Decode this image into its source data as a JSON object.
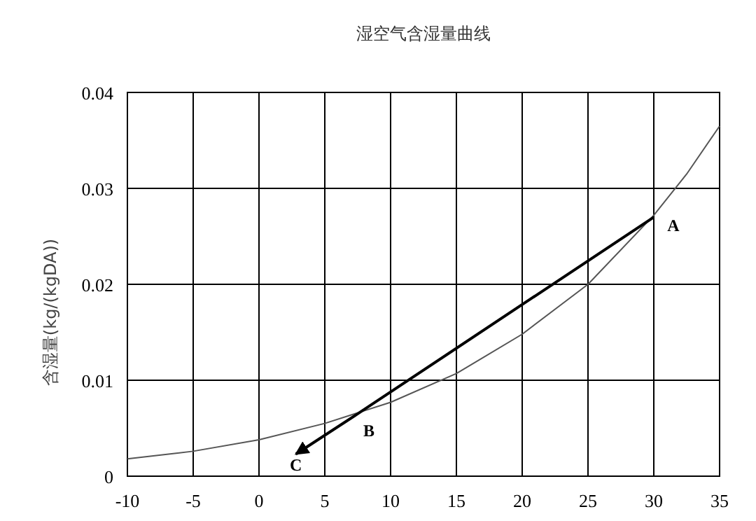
{
  "chart_data": {
    "type": "line",
    "title": "湿空气含湿量曲线",
    "ylabel": "含湿量(kg/(kgDA))",
    "xlim": [
      -10,
      35
    ],
    "xticks": [
      -10,
      -5,
      0,
      5,
      10,
      15,
      20,
      25,
      30,
      35
    ],
    "ylim": [
      0,
      0.04
    ],
    "yticks": [
      0,
      0.01,
      0.02,
      0.03,
      0.04
    ],
    "grid": true,
    "marker": "none",
    "series": [
      {
        "color": "#555555",
        "x": [
          -10,
          -5,
          0,
          5,
          10,
          15,
          20,
          25,
          30,
          32.5,
          35
        ],
        "values": [
          0.0018,
          0.0026,
          0.0038,
          0.0055,
          0.0077,
          0.0107,
          0.0148,
          0.02,
          0.0272,
          0.0315,
          0.0365
        ]
      },
      {
        "color": "#000000",
        "x": [
          30,
          7.5,
          2.8
        ],
        "values": [
          0.027,
          0.0065,
          0.0023
        ]
      }
    ],
    "annotations": [
      {
        "text": "A",
        "x": 30,
        "y": 0.027
      },
      {
        "text": "B",
        "x": 7.5,
        "y": 0.0065
      },
      {
        "text": "C",
        "x": 2.8,
        "y": 0.0023
      }
    ]
  }
}
